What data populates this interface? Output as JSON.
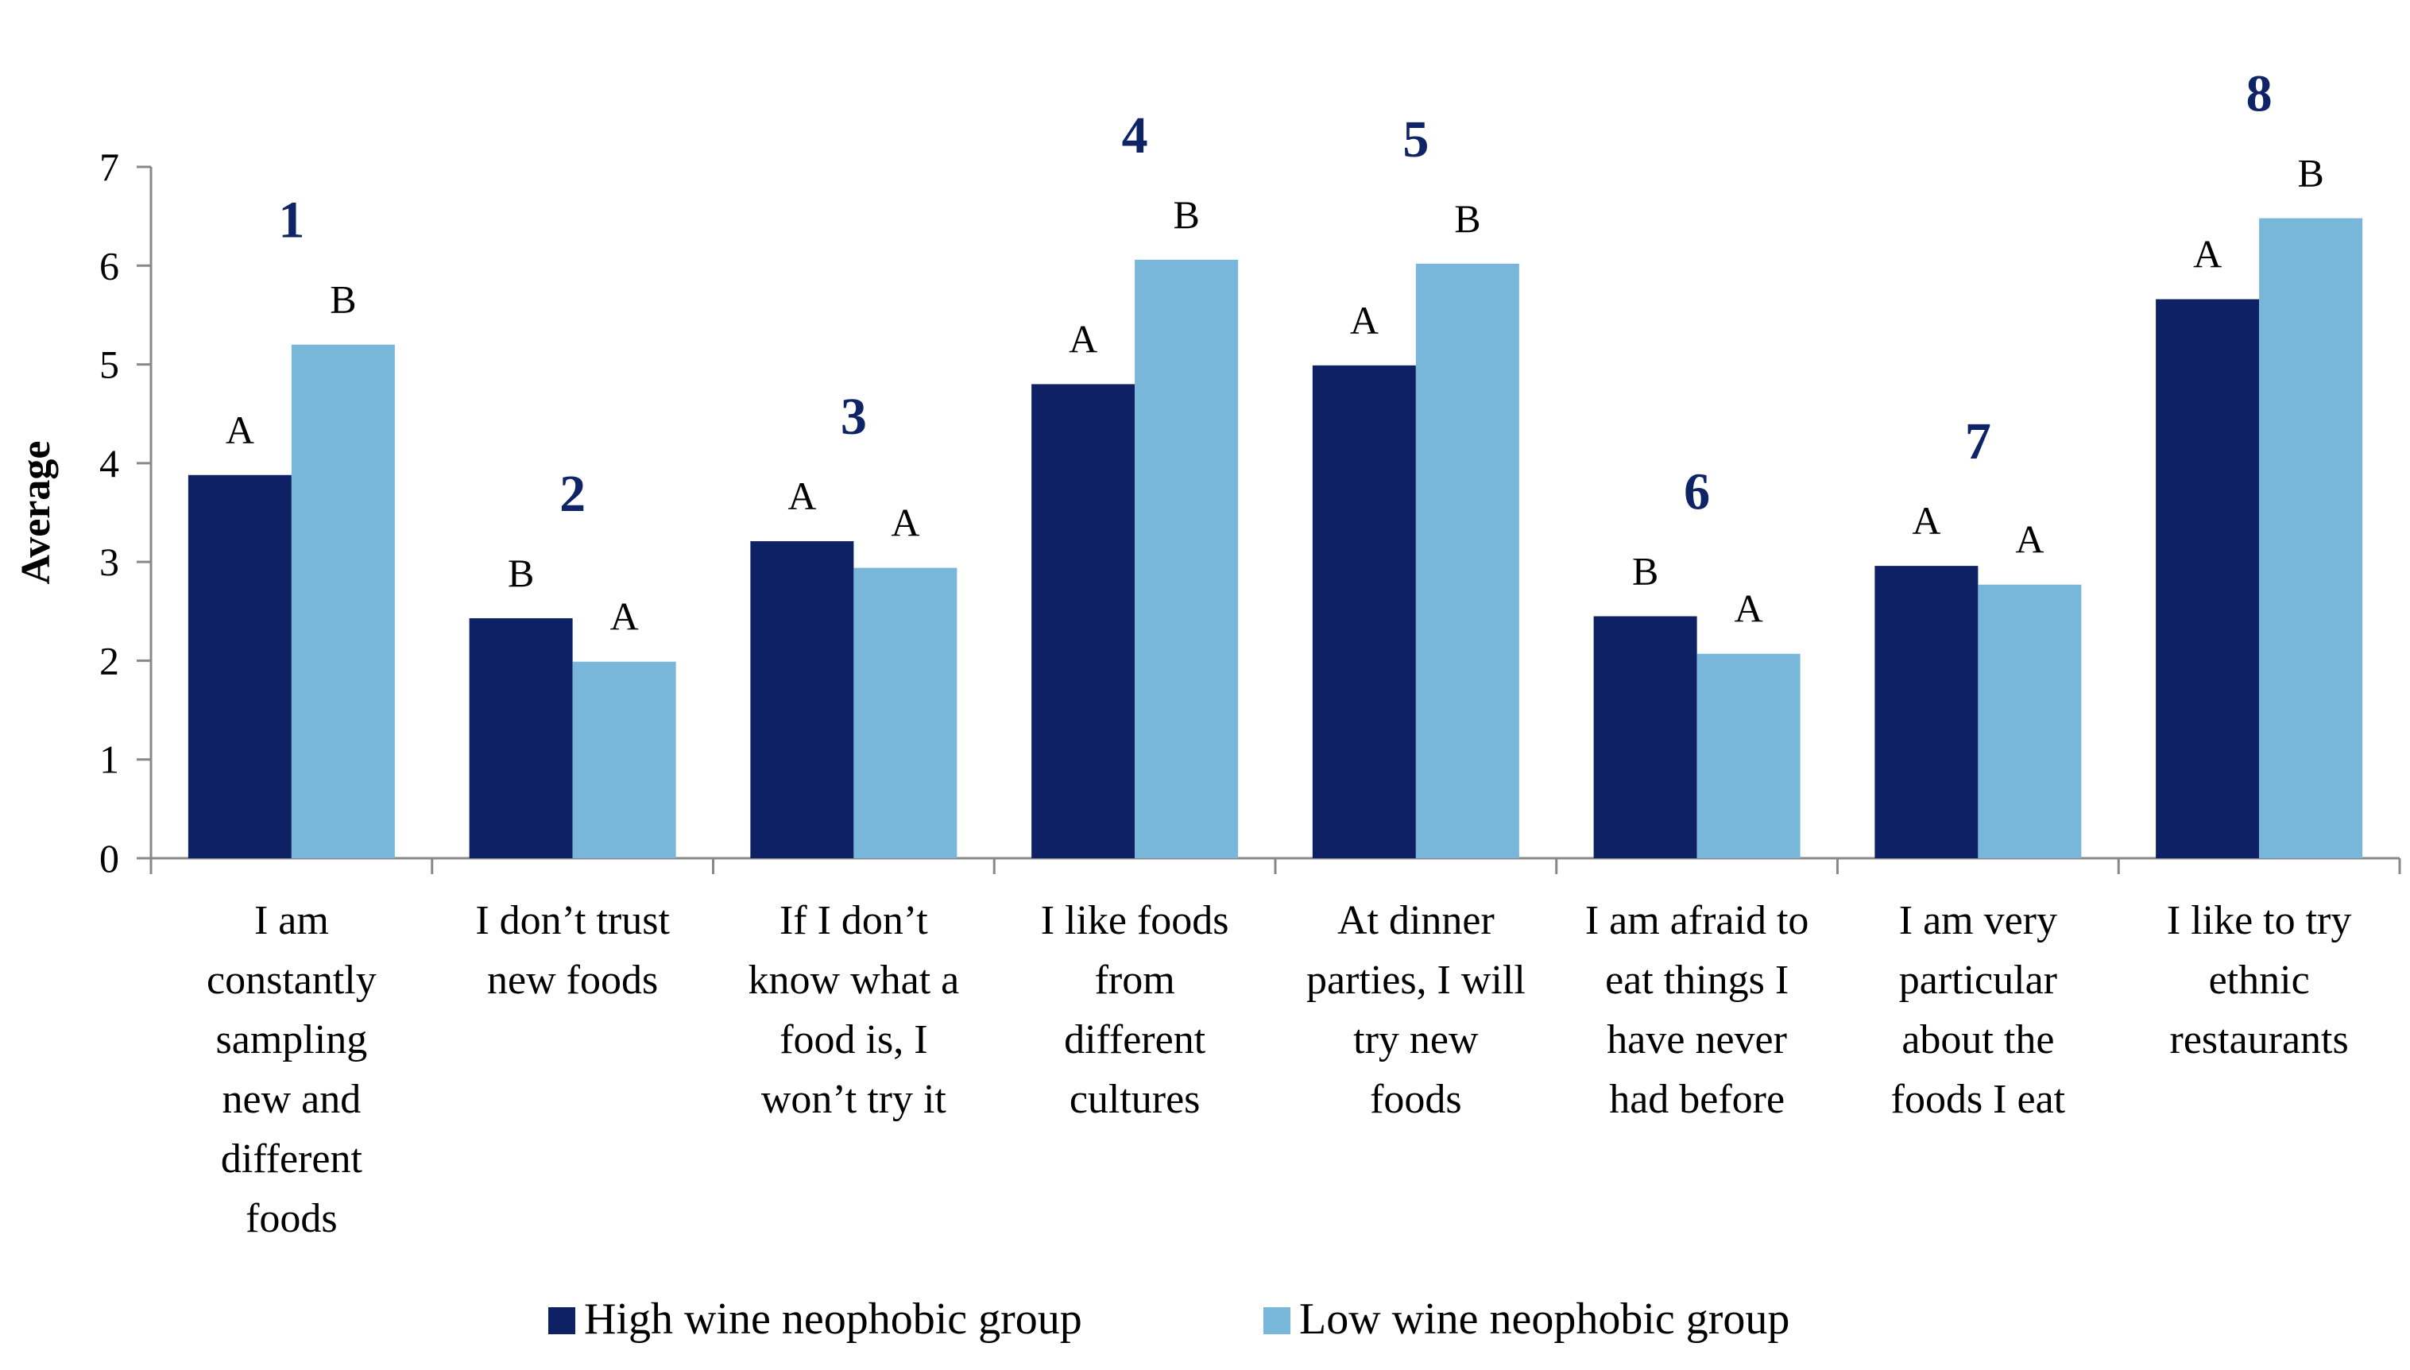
{
  "chart_data": {
    "type": "bar",
    "ylabel": "Average",
    "ylim": [
      0,
      7
    ],
    "yticks": [
      "0",
      "1",
      "2",
      "3",
      "4",
      "5",
      "6",
      "7"
    ],
    "grid": false,
    "legend_position": "bottom",
    "categories": [
      [
        "I am",
        "constantly",
        "sampling",
        "new and",
        "different",
        "foods"
      ],
      [
        "I don’t trust",
        "new foods"
      ],
      [
        "If I don’t",
        "know what a",
        "food is, I",
        "won’t try it"
      ],
      [
        "I like foods",
        "from",
        "different",
        "cultures"
      ],
      [
        "At dinner",
        "parties, I will",
        "try new",
        "foods"
      ],
      [
        "I am afraid to",
        "eat things I",
        "have never",
        "had before"
      ],
      [
        "I am very",
        "particular",
        "about the",
        "foods I eat"
      ],
      [
        "I like to try",
        "ethnic",
        "restaurants"
      ]
    ],
    "item_numbers": [
      "1",
      "2",
      "3",
      "4",
      "5",
      "6",
      "7",
      "8"
    ],
    "series": [
      {
        "name": "High wine neophobic group",
        "color": "#0E2164",
        "values": [
          3.88,
          2.43,
          3.21,
          4.8,
          4.99,
          2.45,
          2.96,
          5.66
        ],
        "letters": [
          "A",
          "B",
          "A",
          "A",
          "A",
          "B",
          "A",
          "A"
        ]
      },
      {
        "name": "Low wine neophobic group",
        "color": "#78B7D9",
        "values": [
          5.2,
          1.99,
          2.94,
          6.06,
          6.02,
          2.07,
          2.77,
          6.48
        ],
        "letters": [
          "B",
          "A",
          "A",
          "B",
          "B",
          "A",
          "A",
          "B"
        ]
      }
    ]
  }
}
